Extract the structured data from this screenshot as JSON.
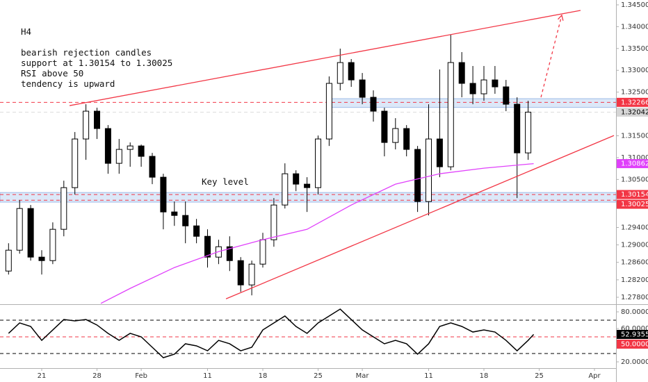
{
  "annotations": {
    "timeframe": "H4",
    "notes": [
      "bearish rejection candles",
      "support at 1.30154 to 1.30025",
      "RSI above 50",
      "tendency is upward"
    ],
    "key_level": "Key level"
  },
  "chart_data": [
    {
      "type": "candlestick",
      "xlim": [
        -3.774,
        51.95
      ],
      "xticks": [
        {
          "value": 0,
          "label": "21"
        },
        {
          "value": 5,
          "label": "28"
        },
        {
          "value": 9,
          "label": "Feb"
        },
        {
          "value": 15,
          "label": "11"
        },
        {
          "value": 20,
          "label": "18"
        },
        {
          "value": 25,
          "label": "25"
        },
        {
          "value": 29,
          "label": "Mar"
        },
        {
          "value": 35,
          "label": "11"
        },
        {
          "value": 40,
          "label": "18"
        },
        {
          "value": 45,
          "label": "25"
        },
        {
          "value": 50,
          "label": "Apr"
        }
      ],
      "ylim": [
        1.27641,
        1.34611
      ],
      "yticks": [
        {
          "value": 1.345,
          "label": "1.34500"
        },
        {
          "value": 1.34,
          "label": "1.34000"
        },
        {
          "value": 1.335,
          "label": "1.33500"
        },
        {
          "value": 1.33,
          "label": "1.33000"
        },
        {
          "value": 1.325,
          "label": "1.32500"
        },
        {
          "value": 1.315,
          "label": "1.31500"
        },
        {
          "value": 1.31,
          "label": "1.31000"
        },
        {
          "value": 1.305,
          "label": "1.30500"
        },
        {
          "value": 1.294,
          "label": "1.29400"
        },
        {
          "value": 1.29,
          "label": "1.29000"
        },
        {
          "value": 1.286,
          "label": "1.28600"
        },
        {
          "value": 1.282,
          "label": "1.28200"
        },
        {
          "value": 1.278,
          "label": "1.27800"
        }
      ],
      "up_color": "#ffffff",
      "down_color": "#000000",
      "wick_color": "#000000",
      "x": [
        -3,
        -2,
        -1,
        0,
        1,
        2,
        3,
        4,
        5,
        6,
        7,
        8,
        9,
        10,
        11,
        12,
        13,
        14,
        15,
        16,
        17,
        18,
        19,
        20,
        21,
        22,
        23,
        24,
        25,
        26,
        27,
        28,
        29,
        30,
        31,
        32,
        33,
        34,
        35,
        36,
        37,
        38,
        39,
        40,
        41,
        42,
        43,
        44
      ],
      "open": [
        1.28401,
        1.28879,
        1.29834,
        1.2872,
        1.2864,
        1.29357,
        1.30312,
        1.31427,
        1.32064,
        1.31666,
        1.30869,
        1.31188,
        1.31267,
        1.31029,
        1.30551,
        1.29755,
        1.29675,
        1.29436,
        1.29197,
        1.2872,
        1.28958,
        1.2864,
        1.28083,
        1.2856,
        1.29118,
        1.29914,
        1.3063,
        1.30392,
        1.30312,
        1.31427,
        1.32701,
        1.33178,
        1.3278,
        1.32382,
        1.32064,
        1.31347,
        1.31666,
        1.31188,
        1.29994,
        1.31427,
        1.3079,
        1.33178,
        1.32701,
        1.32462,
        1.3278,
        1.32621,
        1.32223,
        1.31108
      ],
      "high": [
        1.29038,
        1.30025,
        1.29914,
        1.28879,
        1.29516,
        1.30471,
        1.31586,
        1.32223,
        1.32143,
        1.31745,
        1.31427,
        1.31347,
        1.31299,
        1.31108,
        1.3063,
        1.29994,
        1.29994,
        1.29595,
        1.29357,
        1.29118,
        1.29197,
        1.2872,
        1.2864,
        1.29277,
        1.30073,
        1.30869,
        1.3071,
        1.30551,
        1.31506,
        1.3286,
        1.33497,
        1.33258,
        1.32939,
        1.32541,
        1.32143,
        1.31904,
        1.31745,
        1.31267,
        1.32223,
        1.33019,
        1.33815,
        1.33417,
        1.33099,
        1.33099,
        1.33099,
        1.3278,
        1.32382,
        1.32302
      ],
      "low": [
        1.28321,
        1.28799,
        1.2864,
        1.28321,
        1.2856,
        1.29197,
        1.30153,
        1.30949,
        1.31427,
        1.3063,
        1.3063,
        1.3079,
        1.3079,
        1.30392,
        1.29357,
        1.29436,
        1.29038,
        1.29038,
        1.28481,
        1.2856,
        1.28401,
        1.27924,
        1.27844,
        1.28481,
        1.28958,
        1.29834,
        1.30232,
        1.29755,
        1.30153,
        1.31267,
        1.32541,
        1.32621,
        1.32223,
        1.31825,
        1.31029,
        1.31188,
        1.31029,
        1.29755,
        1.29675,
        1.30551,
        1.3071,
        1.32382,
        1.32223,
        1.32302,
        1.32462,
        1.32064,
        1.30073,
        1.30949
      ],
      "close": [
        1.28879,
        1.29834,
        1.2872,
        1.2864,
        1.29357,
        1.30312,
        1.31427,
        1.32064,
        1.31666,
        1.30869,
        1.31188,
        1.31267,
        1.31029,
        1.30551,
        1.29755,
        1.29675,
        1.29436,
        1.29197,
        1.2872,
        1.28958,
        1.2864,
        1.28083,
        1.2856,
        1.29118,
        1.29914,
        1.3063,
        1.30392,
        1.30312,
        1.31427,
        1.32701,
        1.33178,
        1.3278,
        1.32382,
        1.32064,
        1.31347,
        1.31666,
        1.31188,
        1.29994,
        1.31427,
        1.3079,
        1.33178,
        1.32701,
        1.32462,
        1.3278,
        1.32621,
        1.32223,
        1.31108,
        1.32042
      ],
      "lines": [
        {
          "color": "#e040fb",
          "x": [
            5.35,
            8,
            12,
            16,
            20,
            24,
            28,
            32,
            36,
            40,
            44.5
          ],
          "values": [
            1.2766,
            1.28003,
            1.28481,
            1.28847,
            1.29118,
            1.29357,
            1.29914,
            1.30392,
            1.3063,
            1.30758,
            1.30862
          ]
        }
      ],
      "trendlines": [
        {
          "color": "#f23645",
          "dashed": false,
          "x": [
            2.52,
            48.74
          ],
          "values": [
            1.32191,
            1.34373
          ]
        },
        {
          "color": "#f23645",
          "dashed": false,
          "x": [
            16.67,
            51.76
          ],
          "values": [
            1.27764,
            1.31506
          ]
        },
        {
          "color": "#f23645",
          "dashed": true,
          "x": [
            45.16,
            47.04
          ],
          "values": [
            1.32382,
            1.34261
          ]
        }
      ],
      "zones": [
        {
          "x0": 25.8,
          "lower": 1.3215,
          "upper": 1.3235,
          "color": "#dce8f8"
        },
        {
          "x0": -3.774,
          "lower": 1.2998,
          "upper": 1.302,
          "color": "#dce8f8"
        }
      ],
      "levels": [
        {
          "value": 1.32266,
          "color": "#f23645"
        },
        {
          "value": 1.30154,
          "color": "#f23645"
        },
        {
          "value": 1.30025,
          "color": "#f23645"
        },
        {
          "value": 1.32042,
          "color": "#dddddd"
        }
      ],
      "price_labels": [
        {
          "value": 1.32266,
          "color": "#f23645",
          "text_color": "#ffffff"
        },
        {
          "value": 1.32042,
          "color": "#d6d6d6",
          "text_color": "#000000"
        },
        {
          "value": 1.30862,
          "color": "#e040fb",
          "text_color": "#ffffff"
        },
        {
          "value": 1.30154,
          "color": "#f23645",
          "text_color": "#ffffff"
        },
        {
          "value": 1.30025,
          "color": "#f23645",
          "text_color": "#ffffff"
        }
      ]
    },
    {
      "type": "line",
      "color": "#000000",
      "ylim": [
        12.5,
        87.5
      ],
      "yticks": [
        {
          "value": 80,
          "label": "80.0000"
        },
        {
          "value": 60,
          "label": "60.0000"
        },
        {
          "value": 20,
          "label": "20.0000"
        }
      ],
      "x": [
        -3,
        -2,
        -1,
        0,
        1,
        2,
        3,
        4,
        5,
        6,
        7,
        8,
        9,
        10,
        11,
        12,
        13,
        14,
        15,
        16,
        17,
        18,
        19,
        20,
        21,
        22,
        23,
        24,
        25,
        26,
        27,
        28,
        29,
        30,
        31,
        32,
        33,
        34,
        35,
        36,
        37,
        38,
        39,
        40,
        41,
        42,
        43,
        44,
        44.5
      ],
      "values": [
        54.2,
        66.7,
        62.5,
        45.8,
        58.3,
        70.8,
        69.2,
        70.8,
        64.2,
        54.2,
        45.8,
        54.2,
        50,
        37.5,
        25,
        29.2,
        41.7,
        39.2,
        33.3,
        45.8,
        41.7,
        33.3,
        37.5,
        58.3,
        66.7,
        75,
        62.5,
        54.2,
        66.7,
        75,
        83.3,
        70.8,
        58.3,
        50,
        41.7,
        45.8,
        41.7,
        29.2,
        41.7,
        62.5,
        66.7,
        62.5,
        55.8,
        58.3,
        55.8,
        45.8,
        33.3,
        45.8,
        52.9355
      ],
      "levels": [
        {
          "value": 70,
          "color": "#000000"
        },
        {
          "value": 50,
          "color": "#f23645"
        },
        {
          "value": 30,
          "color": "#000000"
        }
      ],
      "price_labels": [
        {
          "value": 52.9355,
          "color": "#000000",
          "text_color": "#ffffff"
        },
        {
          "value": 50,
          "label": "50.0000",
          "color": "#f23645",
          "text_color": "#ffffff"
        }
      ]
    }
  ]
}
